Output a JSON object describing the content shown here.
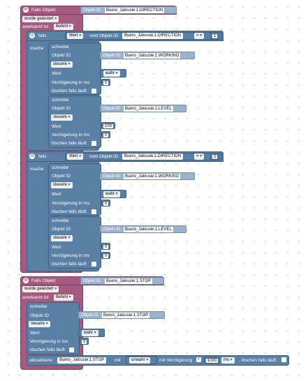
{
  "labels": {
    "falls_objekt": "Falls Objekt",
    "objekt_id": "Objekt ID",
    "wurde_geaendert": "wurde geändert",
    "anerkannt_ist": "anerkannt ist",
    "befehl": "Befehl",
    "falls": "falls",
    "mache": "mache",
    "wert": "Wert",
    "vom_objekt_id": "vom Objekt ID",
    "eq": "=",
    "schreibe": "schreibe",
    "steuere": "steuere",
    "verzoegerung_ms": "Verzögerung in ms",
    "loeschen_falls_laeuft": "löschen falls läuft",
    "aktualisiere": "aktualisiere",
    "mit": "mit",
    "mit_verzoegerung": "mit Verzögerung",
    "ms": "ms",
    "loeschen_falls_laeuft_inline": ", löschen falls läuft"
  },
  "event1": {
    "object_id": "Buero_Jalousie:1.DIRECTION",
    "if1": {
      "compare_object": "Buero_Jalousie:1.DIRECTION",
      "compare_value": "1",
      "write1": {
        "object": "Buero_Jalousie:1.WORKING",
        "value": "wahr",
        "delay": "0"
      },
      "write2": {
        "object": "Buero_Jalousie:1.LEVEL",
        "value": "100",
        "delay": "0"
      }
    },
    "if2": {
      "compare_object": "Buero_Jalousie:1.DIRECTION",
      "compare_value": "2",
      "write1": {
        "object": "Buero_Jalousie:1.WORKING",
        "value": "wahr",
        "delay": "0"
      },
      "write2": {
        "object": "Buero_Jalousie:1.LEVEL",
        "value": "0",
        "delay": "0"
      }
    }
  },
  "event2": {
    "object_id": "Buero_Jalousie:1.STOP",
    "write1": {
      "object": "Buero_Jalousie:1.STOP",
      "value": "wahr",
      "delay": "0"
    },
    "update": {
      "object": "Buero_Jalousie:1.STOP",
      "value": "unwahr",
      "delay": "1000"
    }
  },
  "colors": {
    "event_block": "#a55b80",
    "control_block": "#5b80a5",
    "action_block": "#5b80a5"
  }
}
